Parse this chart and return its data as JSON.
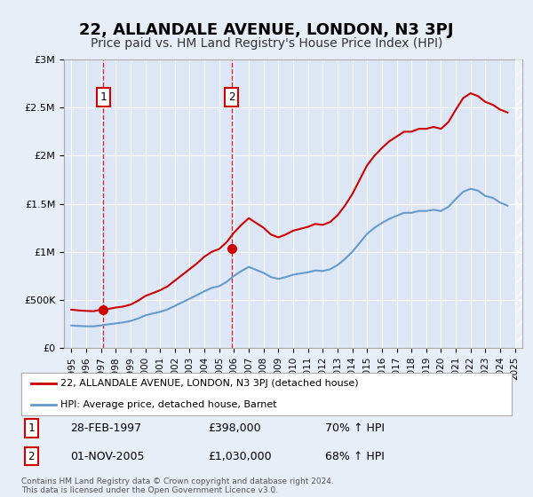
{
  "title": "22, ALLANDALE AVENUE, LONDON, N3 3PJ",
  "subtitle": "Price paid vs. HM Land Registry's House Price Index (HPI)",
  "title_fontsize": 13,
  "subtitle_fontsize": 10,
  "xlabel": "",
  "ylabel": "",
  "ylim": [
    0,
    3000000
  ],
  "yticks": [
    0,
    500000,
    1000000,
    1500000,
    2000000,
    2500000,
    3000000
  ],
  "ytick_labels": [
    "£0",
    "£500K",
    "£1M",
    "£1.5M",
    "£2M",
    "£2.5M",
    "£3M"
  ],
  "xlim": [
    1994.5,
    2025.5
  ],
  "xticks": [
    1995,
    1996,
    1997,
    1998,
    1999,
    2000,
    2001,
    2002,
    2003,
    2004,
    2005,
    2006,
    2007,
    2008,
    2009,
    2010,
    2011,
    2012,
    2013,
    2014,
    2015,
    2016,
    2017,
    2018,
    2019,
    2020,
    2021,
    2022,
    2023,
    2024,
    2025
  ],
  "background_color": "#e8eef8",
  "plot_bg_color": "#dce6f5",
  "grid_color": "#ffffff",
  "red_line_color": "#cc0000",
  "blue_line_color": "#6699cc",
  "sale1_x": 1997.16,
  "sale1_y": 398000,
  "sale1_label": "1",
  "sale1_date": "28-FEB-1997",
  "sale1_price": "£398,000",
  "sale1_hpi": "70% ↑ HPI",
  "sale2_x": 2005.83,
  "sale2_y": 1030000,
  "sale2_label": "2",
  "sale2_date": "01-NOV-2005",
  "sale2_price": "£1,030,000",
  "sale2_hpi": "68% ↑ HPI",
  "legend_line1": "22, ALLANDALE AVENUE, LONDON, N3 3PJ (detached house)",
  "legend_line2": "HPI: Average price, detached house, Barnet",
  "footnote": "Contains HM Land Registry data © Crown copyright and database right 2024.\nThis data is licensed under the Open Government Licence v3.0.",
  "red_hpi_years": [
    1995,
    1995.5,
    1996,
    1996.5,
    1997,
    1997.5,
    1998,
    1998.5,
    1999,
    1999.5,
    2000,
    2000.5,
    2001,
    2001.5,
    2002,
    2002.5,
    2003,
    2003.5,
    2004,
    2004.5,
    2005,
    2005.5,
    2006,
    2006.5,
    2007,
    2007.5,
    2008,
    2008.5,
    2009,
    2009.5,
    2010,
    2010.5,
    2011,
    2011.5,
    2012,
    2012.5,
    2013,
    2013.5,
    2014,
    2014.5,
    2015,
    2015.5,
    2016,
    2016.5,
    2017,
    2017.5,
    2018,
    2018.5,
    2019,
    2019.5,
    2020,
    2020.5,
    2021,
    2021.5,
    2022,
    2022.5,
    2023,
    2023.5,
    2024,
    2024.5
  ],
  "red_hpi_vals": [
    398000,
    390000,
    385000,
    382000,
    398000,
    405000,
    420000,
    430000,
    450000,
    490000,
    540000,
    570000,
    600000,
    640000,
    700000,
    760000,
    820000,
    880000,
    950000,
    1000000,
    1030000,
    1100000,
    1200000,
    1280000,
    1350000,
    1300000,
    1250000,
    1180000,
    1150000,
    1180000,
    1220000,
    1240000,
    1260000,
    1290000,
    1280000,
    1310000,
    1380000,
    1480000,
    1600000,
    1750000,
    1900000,
    2000000,
    2080000,
    2150000,
    2200000,
    2250000,
    2250000,
    2280000,
    2280000,
    2300000,
    2280000,
    2350000,
    2480000,
    2600000,
    2650000,
    2620000,
    2560000,
    2530000,
    2480000,
    2450000
  ],
  "blue_hpi_years": [
    1995,
    1995.5,
    1996,
    1996.5,
    1997,
    1997.5,
    1998,
    1998.5,
    1999,
    1999.5,
    2000,
    2000.5,
    2001,
    2001.5,
    2002,
    2002.5,
    2003,
    2003.5,
    2004,
    2004.5,
    2005,
    2005.5,
    2006,
    2006.5,
    2007,
    2007.5,
    2008,
    2008.5,
    2009,
    2009.5,
    2010,
    2010.5,
    2011,
    2011.5,
    2012,
    2012.5,
    2013,
    2013.5,
    2014,
    2014.5,
    2015,
    2015.5,
    2016,
    2016.5,
    2017,
    2017.5,
    2018,
    2018.5,
    2019,
    2019.5,
    2020,
    2020.5,
    2021,
    2021.5,
    2022,
    2022.5,
    2023,
    2023.5,
    2024,
    2024.5
  ],
  "blue_hpi_vals": [
    233000,
    228000,
    225000,
    224000,
    234000,
    245000,
    255000,
    265000,
    280000,
    305000,
    338000,
    358000,
    375000,
    400000,
    437000,
    475000,
    512000,
    550000,
    590000,
    625000,
    643000,
    687000,
    750000,
    800000,
    843000,
    812000,
    781000,
    737000,
    718000,
    737000,
    762000,
    775000,
    787000,
    806000,
    800000,
    818000,
    862000,
    925000,
    1000000,
    1093000,
    1187000,
    1250000,
    1300000,
    1343000,
    1375000,
    1406000,
    1406000,
    1425000,
    1425000,
    1437000,
    1425000,
    1468000,
    1550000,
    1625000,
    1656000,
    1637000,
    1581000,
    1562000,
    1512000,
    1481000
  ]
}
